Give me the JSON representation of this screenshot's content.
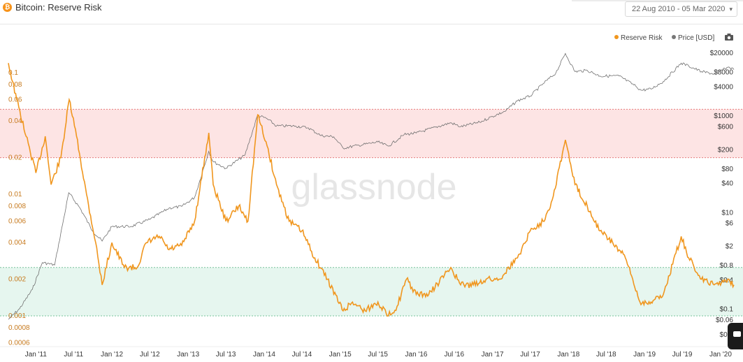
{
  "header": {
    "title": "Bitcoin: Reserve Risk",
    "date_range": "22 Aug 2010 - 05 Mar 2020"
  },
  "legend": {
    "reserve_risk": "Reserve Risk",
    "price": "Price [USD]"
  },
  "watermark": "glassnode",
  "colors": {
    "reserve_risk": "#f0961e",
    "price": "#707070",
    "red_zone": "#fde4e4",
    "green_zone": "#e6f6ef"
  },
  "chart_data": {
    "type": "line",
    "title": "Bitcoin: Reserve Risk",
    "x_range": [
      "2010-08-22",
      "2020-03-05"
    ],
    "x_tick_labels": [
      "Jan '11",
      "Jul '11",
      "Jan '12",
      "Jul '12",
      "Jan '13",
      "Jul '13",
      "Jan '14",
      "Jul '14",
      "Jan '15",
      "Jul '15",
      "Jan '16",
      "Jul '16",
      "Jan '17",
      "Jul '17",
      "Jan '18",
      "Jul '18",
      "Jan '19",
      "Jul '19",
      "Jan '20"
    ],
    "left_axis": {
      "scale": "log",
      "tick_labels": [
        "0.1",
        "0.08",
        "0.06",
        "0.04",
        "0.02",
        "0.01",
        "0.008",
        "0.006",
        "0.004",
        "0.002",
        "0.001",
        "0.0008",
        "0.0006"
      ]
    },
    "right_axis": {
      "scale": "log",
      "tick_labels": [
        "$20000",
        "$8000",
        "$4000",
        "$1000",
        "$600",
        "$200",
        "$80",
        "$40",
        "$10",
        "$6",
        "$2",
        "$0.8",
        "$0.4",
        "$0.1",
        "$0.06",
        "$0.0"
      ]
    },
    "bands": [
      {
        "name": "high",
        "from": 0.02,
        "to": 0.05
      },
      {
        "name": "low",
        "from": 0.001,
        "to": 0.0025
      }
    ],
    "series": [
      {
        "name": "Reserve Risk",
        "axis": "left",
        "points": [
          [
            "2010-08-22",
            0.12
          ],
          [
            "2010-10-01",
            0.06
          ],
          [
            "2010-11-15",
            0.03
          ],
          [
            "2011-01-01",
            0.015
          ],
          [
            "2011-02-15",
            0.03
          ],
          [
            "2011-03-15",
            0.012
          ],
          [
            "2011-05-01",
            0.02
          ],
          [
            "2011-06-10",
            0.06
          ],
          [
            "2011-07-15",
            0.03
          ],
          [
            "2011-09-01",
            0.01
          ],
          [
            "2011-10-15",
            0.004
          ],
          [
            "2011-11-15",
            0.0018
          ],
          [
            "2012-01-01",
            0.004
          ],
          [
            "2012-03-01",
            0.0025
          ],
          [
            "2012-05-01",
            0.0025
          ],
          [
            "2012-06-15",
            0.004
          ],
          [
            "2012-08-15",
            0.0045
          ],
          [
            "2012-10-01",
            0.0035
          ],
          [
            "2012-12-01",
            0.0038
          ],
          [
            "2013-02-01",
            0.006
          ],
          [
            "2013-04-10",
            0.032
          ],
          [
            "2013-05-01",
            0.012
          ],
          [
            "2013-07-01",
            0.006
          ],
          [
            "2013-09-01",
            0.008
          ],
          [
            "2013-10-15",
            0.006
          ],
          [
            "2013-12-01",
            0.045
          ],
          [
            "2014-01-15",
            0.025
          ],
          [
            "2014-03-01",
            0.012
          ],
          [
            "2014-05-01",
            0.006
          ],
          [
            "2014-07-01",
            0.005
          ],
          [
            "2014-09-01",
            0.003
          ],
          [
            "2014-11-01",
            0.002
          ],
          [
            "2015-01-15",
            0.0011
          ],
          [
            "2015-03-01",
            0.0013
          ],
          [
            "2015-05-01",
            0.0011
          ],
          [
            "2015-07-01",
            0.0013
          ],
          [
            "2015-08-20",
            0.001
          ],
          [
            "2015-10-01",
            0.0012
          ],
          [
            "2015-11-15",
            0.002
          ],
          [
            "2016-01-01",
            0.0015
          ],
          [
            "2016-03-01",
            0.0015
          ],
          [
            "2016-06-15",
            0.0025
          ],
          [
            "2016-08-01",
            0.0018
          ],
          [
            "2016-10-01",
            0.0018
          ],
          [
            "2016-12-01",
            0.002
          ],
          [
            "2017-02-01",
            0.002
          ],
          [
            "2017-05-01",
            0.003
          ],
          [
            "2017-07-01",
            0.005
          ],
          [
            "2017-09-01",
            0.006
          ],
          [
            "2017-10-15",
            0.009
          ],
          [
            "2017-12-17",
            0.028
          ],
          [
            "2018-02-01",
            0.012
          ],
          [
            "2018-04-01",
            0.008
          ],
          [
            "2018-06-01",
            0.005
          ],
          [
            "2018-08-01",
            0.004
          ],
          [
            "2018-10-01",
            0.003
          ],
          [
            "2018-12-10",
            0.0013
          ],
          [
            "2019-02-01",
            0.0013
          ],
          [
            "2019-04-01",
            0.0015
          ],
          [
            "2019-06-26",
            0.0045
          ],
          [
            "2019-08-01",
            0.003
          ],
          [
            "2019-10-01",
            0.002
          ],
          [
            "2019-12-01",
            0.0018
          ],
          [
            "2020-02-10",
            0.002
          ],
          [
            "2020-03-05",
            0.0018
          ]
        ]
      },
      {
        "name": "Price [USD]",
        "axis": "right",
        "points": [
          [
            "2010-08-22",
            0.06
          ],
          [
            "2010-10-15",
            0.1
          ],
          [
            "2010-12-15",
            0.25
          ],
          [
            "2011-02-01",
            0.9
          ],
          [
            "2011-04-01",
            0.8
          ],
          [
            "2011-06-08",
            25
          ],
          [
            "2011-08-01",
            12
          ],
          [
            "2011-10-01",
            4
          ],
          [
            "2011-11-15",
            2.5
          ],
          [
            "2012-01-01",
            5
          ],
          [
            "2012-04-01",
            5
          ],
          [
            "2012-07-01",
            7
          ],
          [
            "2012-10-01",
            12
          ],
          [
            "2012-12-01",
            13
          ],
          [
            "2013-02-01",
            20
          ],
          [
            "2013-04-10",
            180
          ],
          [
            "2013-05-01",
            110
          ],
          [
            "2013-07-01",
            80
          ],
          [
            "2013-10-01",
            150
          ],
          [
            "2013-11-30",
            1000
          ],
          [
            "2014-01-15",
            850
          ],
          [
            "2014-03-01",
            600
          ],
          [
            "2014-06-01",
            600
          ],
          [
            "2014-08-01",
            550
          ],
          [
            "2014-10-01",
            380
          ],
          [
            "2014-12-01",
            360
          ],
          [
            "2015-01-15",
            210
          ],
          [
            "2015-04-01",
            240
          ],
          [
            "2015-07-01",
            280
          ],
          [
            "2015-08-20",
            230
          ],
          [
            "2015-11-04",
            400
          ],
          [
            "2016-01-01",
            430
          ],
          [
            "2016-06-15",
            700
          ],
          [
            "2016-08-01",
            580
          ],
          [
            "2016-11-01",
            720
          ],
          [
            "2017-01-01",
            950
          ],
          [
            "2017-03-01",
            1200
          ],
          [
            "2017-05-01",
            2000
          ],
          [
            "2017-07-01",
            2500
          ],
          [
            "2017-09-01",
            4500
          ],
          [
            "2017-11-01",
            7500
          ],
          [
            "2017-12-17",
            19000
          ],
          [
            "2018-02-01",
            8000
          ],
          [
            "2018-04-01",
            8500
          ],
          [
            "2018-06-01",
            6500
          ],
          [
            "2018-09-01",
            6500
          ],
          [
            "2018-11-20",
            4000
          ],
          [
            "2018-12-15",
            3300
          ],
          [
            "2019-02-01",
            3500
          ],
          [
            "2019-04-01",
            5000
          ],
          [
            "2019-06-26",
            12000
          ],
          [
            "2019-08-01",
            10500
          ],
          [
            "2019-10-01",
            8000
          ],
          [
            "2019-12-01",
            7200
          ],
          [
            "2020-02-10",
            10000
          ],
          [
            "2020-03-05",
            8800
          ]
        ]
      }
    ]
  }
}
